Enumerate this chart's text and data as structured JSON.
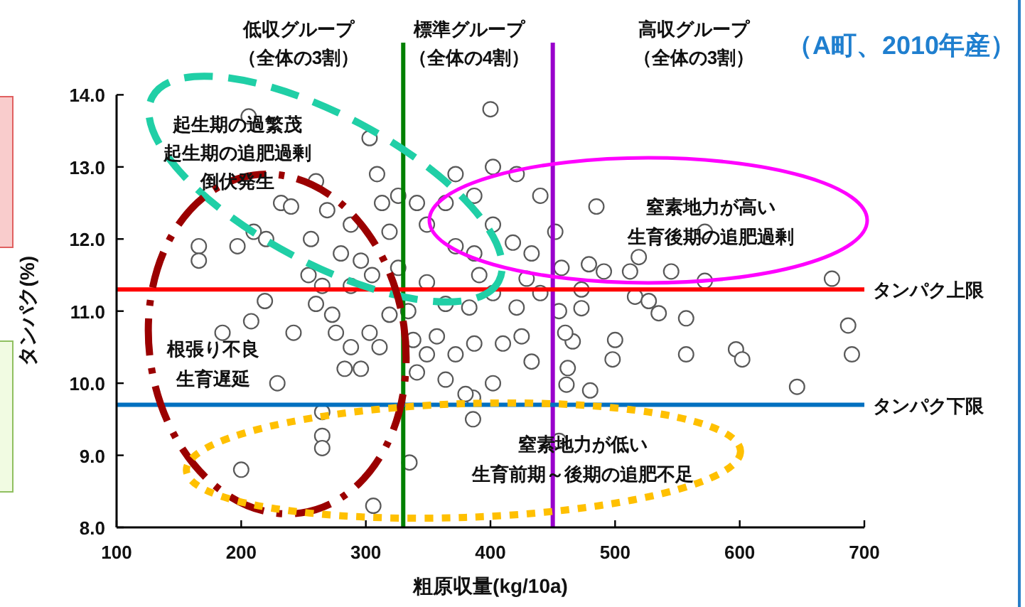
{
  "chart_data": {
    "type": "scatter",
    "title": "（A町、2010年産）",
    "xlabel": "粗原収量(kg/10a)",
    "ylabel": "タンパク(%)",
    "annotations": [
      "低収グループ",
      "（全体の3割）",
      "標準グループ",
      "（全体の4割）",
      "高収グループ",
      "（全体の3割）",
      "起生期の過繁茂",
      "起生期の追肥過剰",
      "倒伏発生",
      "根張り不良",
      "生育遅延",
      "窒素地力が高い",
      "生育後期の追肥過剰",
      "窒素地力が低い",
      "生育前期～後期の追肥不足"
    ],
    "x": [
      400,
      303,
      206,
      166,
      166,
      197,
      210,
      220,
      232,
      240,
      260,
      219,
      208,
      185,
      242,
      229,
      265,
      265,
      265,
      200,
      306,
      335,
      283,
      386,
      386,
      485,
      572,
      674,
      687,
      690,
      646,
      597,
      602,
      557,
      557,
      572,
      545,
      535,
      500,
      498,
      466,
      462,
      461,
      480,
      516,
      527,
      512,
      491,
      473,
      473,
      455,
      519,
      479,
      256,
      260,
      273,
      276,
      288,
      296,
      311,
      305,
      309,
      313,
      319,
      326,
      341,
      349,
      364,
      372,
      387,
      402,
      421,
      440,
      372,
      387,
      402,
      418,
      433,
      452,
      349,
      364,
      383,
      402,
      421,
      440,
      455,
      357,
      372,
      387,
      410,
      425,
      433,
      341,
      364,
      402,
      380,
      349,
      319,
      334,
      303,
      265,
      288,
      280,
      296,
      269,
      288,
      254,
      326,
      338,
      391,
      429,
      457,
      460
    ],
    "values": [
      13.8,
      13.4,
      13.7,
      11.9,
      11.7,
      11.9,
      12.1,
      12.0,
      12.5,
      12.45,
      12.8,
      11.14,
      10.86,
      10.7,
      10.7,
      10.0,
      9.6,
      9.27,
      9.1,
      8.8,
      8.3,
      8.9,
      10.2,
      9.8,
      9.5,
      12.45,
      12.1,
      11.45,
      10.8,
      10.4,
      9.95,
      10.47,
      10.33,
      10.4,
      10.9,
      11.42,
      11.55,
      10.97,
      10.6,
      10.33,
      10.58,
      10.21,
      9.98,
      9.9,
      11.2,
      11.14,
      11.55,
      11.55,
      11.04,
      11.3,
      9.2,
      11.75,
      11.65,
      12.0,
      11.1,
      10.95,
      10.7,
      10.5,
      10.2,
      10.5,
      11.5,
      12.9,
      12.5,
      12.1,
      12.6,
      12.5,
      12.2,
      12.5,
      12.9,
      12.6,
      13.0,
      12.9,
      12.6,
      11.9,
      11.8,
      12.2,
      11.95,
      11.8,
      12.1,
      11.4,
      11.1,
      11.05,
      11.25,
      11.05,
      11.25,
      11.0,
      10.65,
      10.4,
      10.55,
      10.55,
      10.65,
      10.3,
      10.15,
      10.05,
      10.0,
      9.85,
      10.4,
      10.95,
      11.0,
      10.7,
      11.35,
      11.35,
      11.8,
      11.7,
      12.4,
      12.2,
      11.5,
      11.6,
      10.6,
      11.5,
      11.45,
      11.6,
      10.7
    ],
    "color": "#595959",
    "marker": "circle",
    "grid": false,
    "xlim": [
      100,
      700
    ],
    "xticks": [
      100,
      200,
      300,
      400,
      500,
      600,
      700
    ],
    "ylim": [
      8,
      14
    ],
    "yticks": [
      {
        "value": 8,
        "label": "8.0"
      },
      {
        "value": 9,
        "label": "9.0"
      },
      {
        "value": 10,
        "label": "10.0"
      },
      {
        "value": 11,
        "label": "11.0"
      },
      {
        "value": 12,
        "label": "12.0"
      },
      {
        "value": 13,
        "label": "13.0"
      },
      {
        "value": 14,
        "label": "14.0"
      }
    ],
    "ref_lines": [
      {
        "axis": "x",
        "value": 330,
        "color": "#008000"
      },
      {
        "axis": "x",
        "value": 450,
        "color": "#9900cc"
      },
      {
        "axis": "y",
        "value": 11.3,
        "label": "タンパク上限",
        "color": "#ff0000"
      },
      {
        "axis": "y",
        "value": 9.7,
        "label": "タンパク下限",
        "color": "#0070c0"
      }
    ]
  }
}
